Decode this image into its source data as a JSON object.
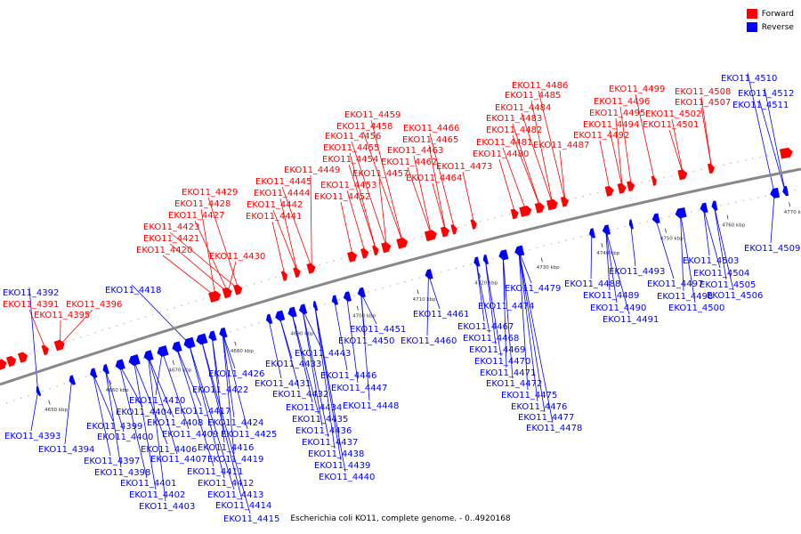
{
  "colors": {
    "forward": "#ff0000",
    "reverse": "#0000ff",
    "backbone": "#888888"
  },
  "legend": [
    {
      "label": "Forward",
      "color": "#ff0000"
    },
    {
      "label": "Reverse",
      "color": "#0000ff"
    }
  ],
  "caption": "Escherichia coli KO11, complete genome. - 0..4920168",
  "ticks": [
    "4650 kbp",
    "4660 kbp",
    "4670 kbp",
    "4680 kbp",
    "4690 kbp",
    "4700 kbp",
    "4710 kbp",
    "4720 kbp",
    "4730 kbp",
    "4740 kbp",
    "4750 kbp",
    "4760 kbp",
    "4770 kbp"
  ],
  "forward_labels": [
    "EKO11_4391",
    "EKO11_4395",
    "EKO11_4396",
    "EKO11_4420",
    "EKO11_4421",
    "EKO11_4423",
    "EKO11_4427",
    "EKO11_4428",
    "EKO11_4429",
    "EKO11_4430",
    "EKO11_4441",
    "EKO11_4442",
    "EKO11_4444",
    "EKO11_4445",
    "EKO11_4449",
    "EKO11_4452",
    "EKO11_4453",
    "EKO11_4454",
    "EKO11_4455",
    "EKO11_4456",
    "EKO11_4457",
    "EKO11_4458",
    "EKO11_4459",
    "EKO11_4462",
    "EKO11_4463",
    "EKO11_4464",
    "EKO11_4465",
    "EKO11_4466",
    "EKO11_4473",
    "EKO11_4480",
    "EKO11_4481",
    "EKO11_4482",
    "EKO11_4483",
    "EKO11_4484",
    "EKO11_4485",
    "EKO11_4486",
    "EKO11_4487",
    "EKO11_4492",
    "EKO11_4494",
    "EKO11_4495",
    "EKO11_4496",
    "EKO11_4499",
    "EKO11_4501",
    "EKO11_4502",
    "EKO11_4507",
    "EKO11_4508"
  ],
  "reverse_labels": [
    "EKO11_4392",
    "EKO11_4393",
    "EKO11_4394",
    "EKO11_4397",
    "EKO11_4398",
    "EKO11_4399",
    "EKO11_4400",
    "EKO11_4401",
    "EKO11_4402",
    "EKO11_4403",
    "EKO11_4404",
    "EKO11_4406",
    "EKO11_4407",
    "EKO11_4408",
    "EKO11_4409",
    "EKO11_4410",
    "EKO11_4411",
    "EKO11_4412",
    "EKO11_4413",
    "EKO11_4414",
    "EKO11_4415",
    "EKO11_4416",
    "EKO11_4417",
    "EKO11_4418",
    "EKO11_4419",
    "EKO11_4422",
    "EKO11_4424",
    "EKO11_4425",
    "EKO11_4426",
    "EKO11_4431",
    "EKO11_4432",
    "EKO11_4433",
    "EKO11_4434",
    "EKO11_4435",
    "EKO11_4436",
    "EKO11_4437",
    "EKO11_4438",
    "EKO11_4439",
    "EKO11_4440",
    "EKO11_4443",
    "EKO11_4446",
    "EKO11_4447",
    "EKO11_4448",
    "EKO11_4450",
    "EKO11_4451",
    "EKO11_4460",
    "EKO11_4461",
    "EKO11_4467",
    "EKO11_4468",
    "EKO11_4469",
    "EKO11_4470",
    "EKO11_4471",
    "EKO11_4472",
    "EKO11_4474",
    "EKO11_4475",
    "EKO11_4476",
    "EKO11_4477",
    "EKO11_4478",
    "EKO11_4479",
    "EKO11_4488",
    "EKO11_4489",
    "EKO11_4490",
    "EKO11_4491",
    "EKO11_4493",
    "EKO11_4497",
    "EKO11_4498",
    "EKO11_4500",
    "EKO11_4503",
    "EKO11_4504",
    "EKO11_4505",
    "EKO11_4506",
    "EKO11_4509",
    "EKO11_4510",
    "EKO11_4511",
    "EKO11_4512"
  ]
}
